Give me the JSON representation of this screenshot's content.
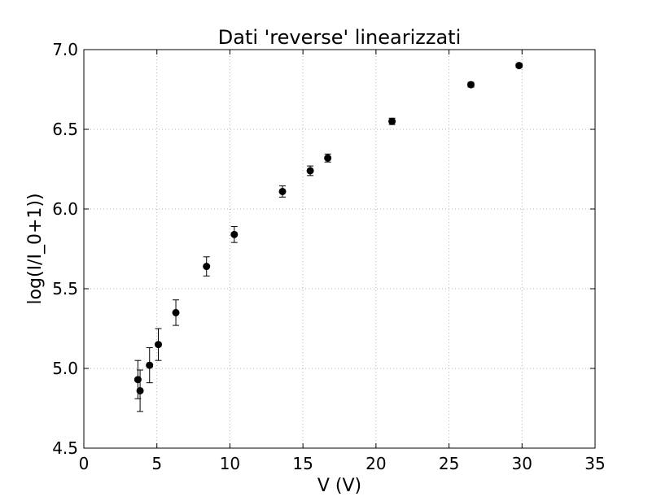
{
  "chart_data": {
    "type": "scatter",
    "title": "Dati 'reverse' linearizzati",
    "xlabel": "V (V)",
    "ylabel": "log(I/I_0+1))",
    "xlim": [
      0,
      35
    ],
    "ylim": [
      4.5,
      7.0
    ],
    "xticks": [
      "0",
      "5",
      "10",
      "15",
      "20",
      "25",
      "30",
      "35"
    ],
    "yticks": [
      "4.5",
      "5.0",
      "5.5",
      "6.0",
      "6.5",
      "7.0"
    ],
    "grid": true,
    "marker_color": "#000000",
    "points": [
      {
        "x": 3.7,
        "y": 4.93,
        "yerr": 0.12
      },
      {
        "x": 3.85,
        "y": 4.86,
        "yerr": 0.13
      },
      {
        "x": 4.5,
        "y": 5.02,
        "yerr": 0.11
      },
      {
        "x": 5.1,
        "y": 5.15,
        "yerr": 0.1
      },
      {
        "x": 6.3,
        "y": 5.35,
        "yerr": 0.08
      },
      {
        "x": 8.4,
        "y": 5.64,
        "yerr": 0.06
      },
      {
        "x": 10.3,
        "y": 5.84,
        "yerr": 0.05
      },
      {
        "x": 13.6,
        "y": 6.11,
        "yerr": 0.035
      },
      {
        "x": 15.5,
        "y": 6.24,
        "yerr": 0.03
      },
      {
        "x": 16.7,
        "y": 6.32,
        "yerr": 0.025
      },
      {
        "x": 21.1,
        "y": 6.55,
        "yerr": 0.02
      },
      {
        "x": 26.5,
        "y": 6.78,
        "yerr": 0.015
      },
      {
        "x": 29.8,
        "y": 6.9,
        "yerr": 0.012
      }
    ]
  }
}
